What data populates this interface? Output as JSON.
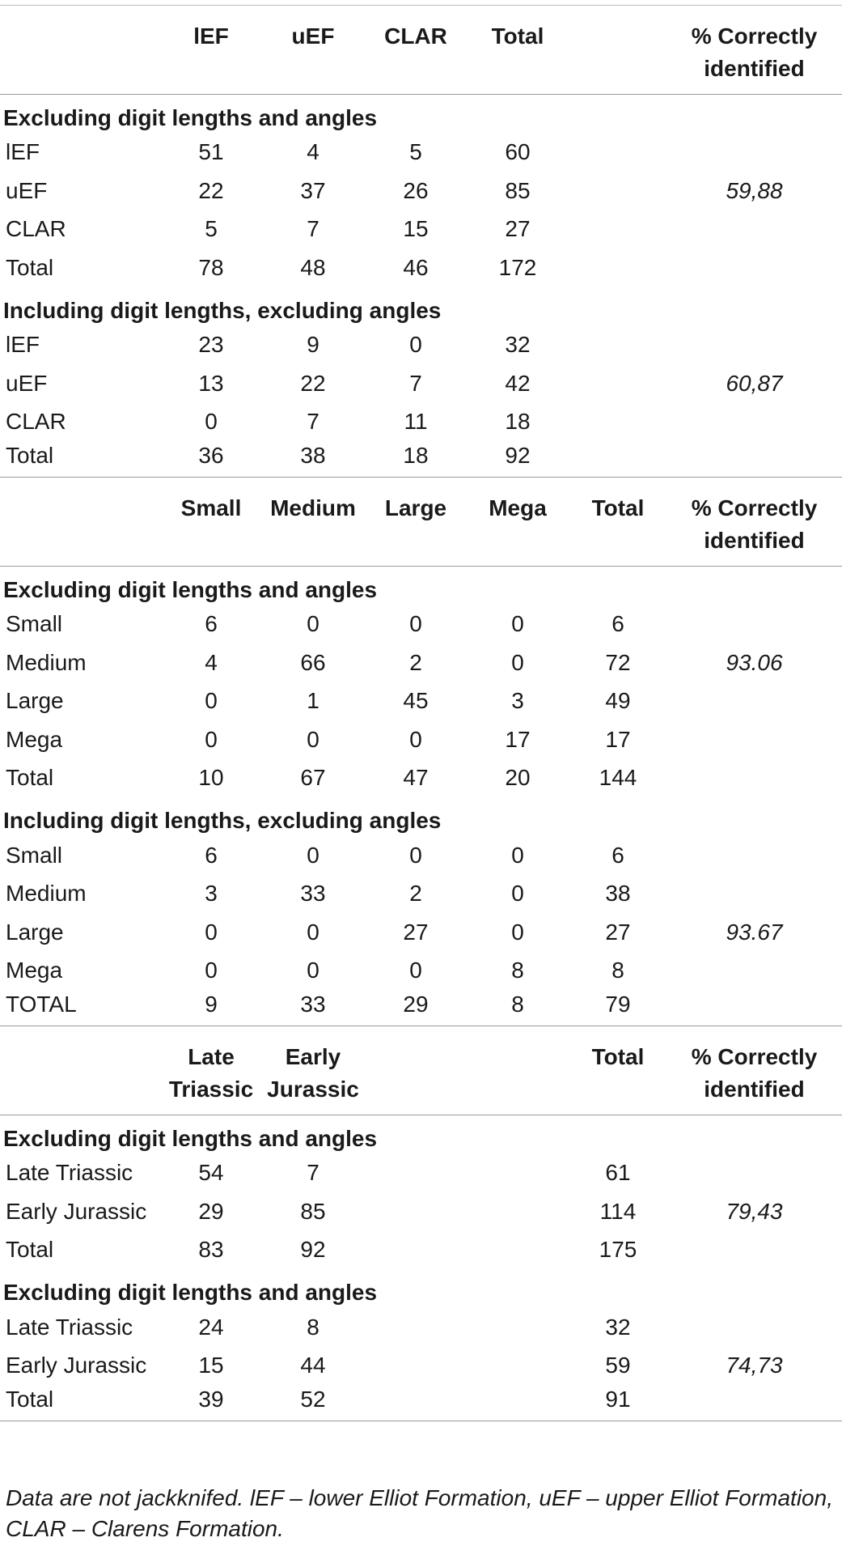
{
  "sections": [
    {
      "headers": [
        "",
        "lEF",
        "uEF",
        "CLAR",
        "Total",
        "",
        "% Correctly identified"
      ],
      "groups": [
        {
          "title": "Excluding digit lengths and angles",
          "rows": [
            [
              "lEF",
              "51",
              "4",
              "5",
              "60",
              "",
              ""
            ],
            [
              "uEF",
              "22",
              "37",
              "26",
              "85",
              "",
              "59,88"
            ],
            [
              "CLAR",
              "5",
              "7",
              "15",
              "27",
              "",
              ""
            ],
            [
              "Total",
              "78",
              "48",
              "46",
              "172",
              "",
              ""
            ]
          ]
        },
        {
          "title": "Including digit lengths, excluding angles",
          "rows": [
            [
              "lEF",
              "23",
              "9",
              "0",
              "32",
              "",
              ""
            ],
            [
              "uEF",
              "13",
              "22",
              "7",
              "42",
              "",
              "60,87"
            ],
            [
              "CLAR",
              "0",
              "7",
              "11",
              "18",
              "",
              ""
            ],
            [
              "Total",
              "36",
              "38",
              "18",
              "92",
              "",
              ""
            ]
          ]
        }
      ]
    },
    {
      "headers": [
        "",
        "Small",
        "Medium",
        "Large",
        "Mega",
        "Total",
        "% Correctly identified"
      ],
      "groups": [
        {
          "title": "Excluding digit lengths and angles",
          "rows": [
            [
              "Small",
              "6",
              "0",
              "0",
              "0",
              "6",
              ""
            ],
            [
              "Medium",
              "4",
              "66",
              "2",
              "0",
              "72",
              "93.06"
            ],
            [
              "Large",
              "0",
              "1",
              "45",
              "3",
              "49",
              ""
            ],
            [
              "Mega",
              "0",
              "0",
              "0",
              "17",
              "17",
              ""
            ],
            [
              "Total",
              "10",
              "67",
              "47",
              "20",
              "144",
              ""
            ]
          ]
        },
        {
          "title": "Including digit lengths, excluding angles",
          "rows": [
            [
              "Small",
              "6",
              "0",
              "0",
              "0",
              "6",
              ""
            ],
            [
              "Medium",
              "3",
              "33",
              "2",
              "0",
              "38",
              ""
            ],
            [
              "Large",
              "0",
              "0",
              "27",
              "0",
              "27",
              "93.67"
            ],
            [
              "Mega",
              "0",
              "0",
              "0",
              "8",
              "8",
              ""
            ],
            [
              "TOTAL",
              "9",
              "33",
              "29",
              "8",
              "79",
              ""
            ]
          ]
        }
      ]
    },
    {
      "headers": [
        "",
        "Late Triassic",
        "Early Jurassic",
        "",
        "",
        "Total",
        "% Correctly identified"
      ],
      "groups": [
        {
          "title": "Excluding digit lengths and angles",
          "rows": [
            [
              "Late Triassic",
              "54",
              "7",
              "",
              "",
              "61",
              ""
            ],
            [
              "Early Jurassic",
              "29",
              "85",
              "",
              "",
              "114",
              "79,43"
            ],
            [
              "Total",
              "83",
              "92",
              "",
              "",
              "175",
              ""
            ]
          ]
        },
        {
          "title": "Excluding digit lengths and angles",
          "rows": [
            [
              "Late Triassic",
              "24",
              "8",
              "",
              "",
              "32",
              ""
            ],
            [
              "Early Jurassic",
              "15",
              "44",
              "",
              "",
              "59",
              "74,73"
            ],
            [
              "Total",
              "39",
              "52",
              "",
              "",
              "91",
              ""
            ]
          ]
        }
      ]
    }
  ],
  "footnote": "Data are not jackknifed. lEF – lower Elliot Formation, uEF – upper Elliot Formation, CLAR – Clarens Formation."
}
